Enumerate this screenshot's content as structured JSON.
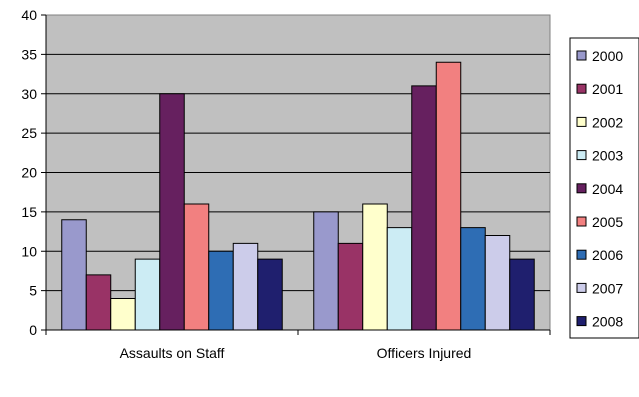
{
  "chart_data": {
    "type": "bar",
    "categories": [
      "Assaults on Staff",
      "Officers Injured"
    ],
    "series": [
      {
        "name": "2000",
        "values": [
          14,
          15
        ],
        "color": "#9999cc"
      },
      {
        "name": "2001",
        "values": [
          7,
          11
        ],
        "color": "#993366"
      },
      {
        "name": "2002",
        "values": [
          4,
          16
        ],
        "color": "#ffffcc"
      },
      {
        "name": "2003",
        "values": [
          9,
          13
        ],
        "color": "#ccecf4"
      },
      {
        "name": "2004",
        "values": [
          30,
          31
        ],
        "color": "#66205f"
      },
      {
        "name": "2005",
        "values": [
          16,
          34
        ],
        "color": "#f28080"
      },
      {
        "name": "2006",
        "values": [
          10,
          13
        ],
        "color": "#2e6db4"
      },
      {
        "name": "2007",
        "values": [
          11,
          12
        ],
        "color": "#ccccea"
      },
      {
        "name": "2008",
        "values": [
          9,
          9
        ],
        "color": "#1f1f6e"
      }
    ],
    "title": "",
    "xlabel": "",
    "ylabel": "",
    "ylim": [
      0,
      40
    ],
    "yticks": [
      0,
      5,
      10,
      15,
      20,
      25,
      30,
      35,
      40
    ],
    "grid": true,
    "legend": "right",
    "plot_background": "#c0c0c0"
  }
}
